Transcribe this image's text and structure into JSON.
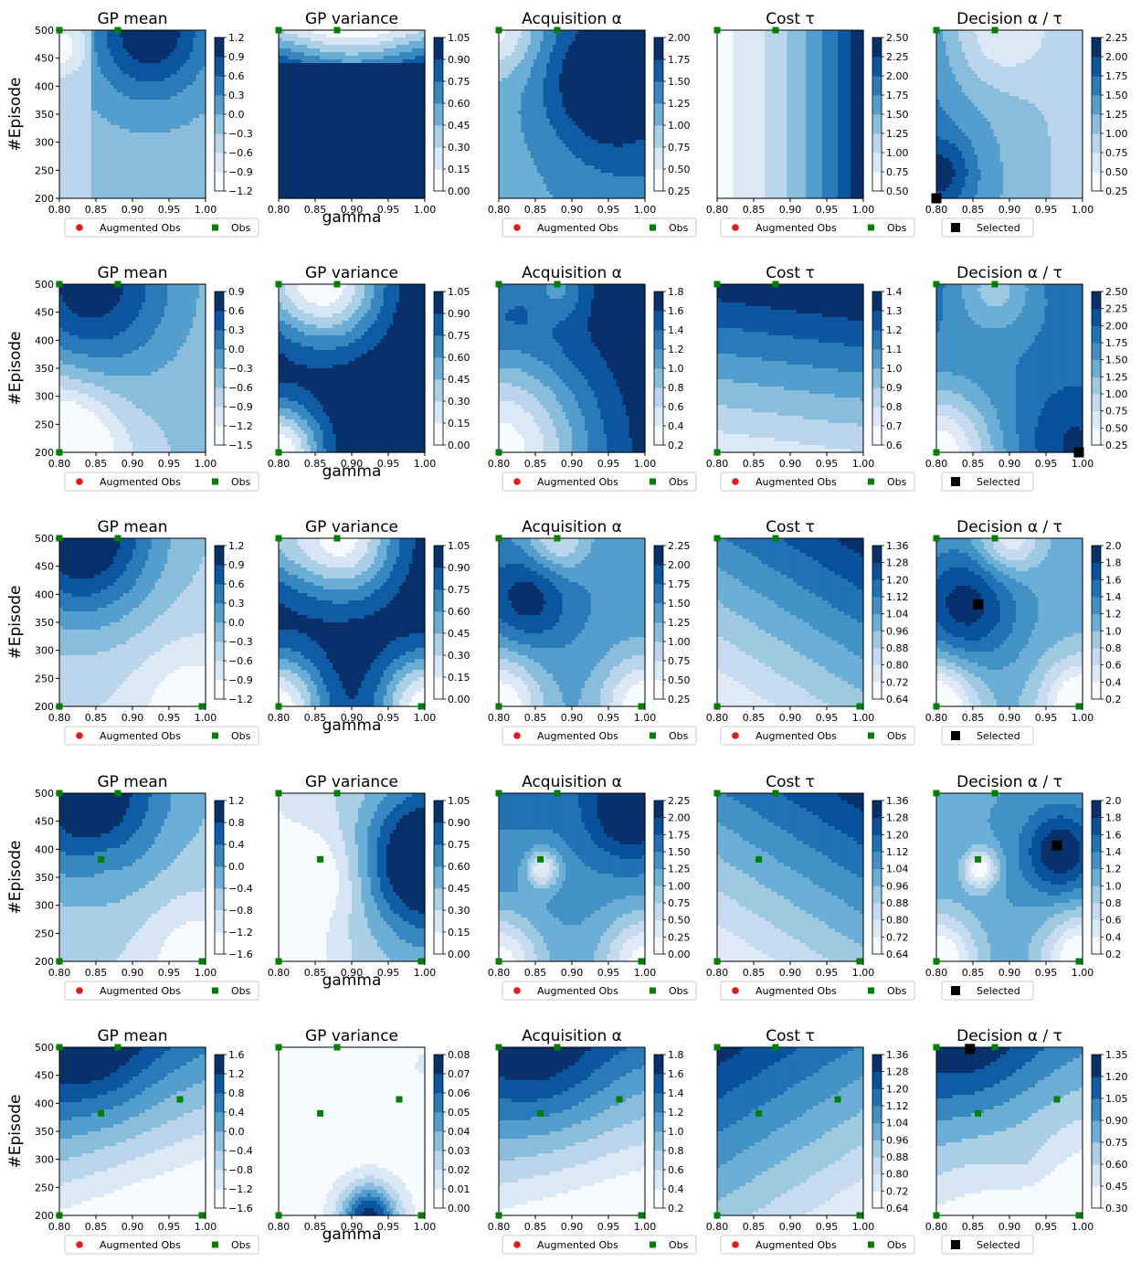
{
  "figure": {
    "row_ylabel": "#Episode",
    "col_xlabel": "gamma",
    "legend_obs_labels": [
      "Augmented Obs",
      "Obs"
    ],
    "legend_selected_label": "Selected",
    "colors": {
      "augmented_obs": "#e41a1c",
      "obs": "#008000",
      "selected": "#000000",
      "colormap": [
        "#f7fbff",
        "#deebf7",
        "#c6dbef",
        "#9ecae1",
        "#6baed6",
        "#4292c6",
        "#2171b5",
        "#08519c",
        "#08306b"
      ]
    }
  },
  "chart_data": [
    {
      "row": 1,
      "type": "heatmap",
      "panels": [
        {
          "title": "GP mean",
          "colorbar_ticks": [
            "1.2",
            "0.9",
            "0.6",
            "0.3",
            "0.0",
            "−0.3",
            "−0.6",
            "−0.9",
            "−1.2"
          ]
        },
        {
          "title": "GP variance",
          "colorbar_ticks": [
            "1.05",
            "0.90",
            "0.75",
            "0.60",
            "0.45",
            "0.30",
            "0.15",
            "0.00"
          ]
        },
        {
          "title": "Acquisition α",
          "colorbar_ticks": [
            "2.00",
            "1.75",
            "1.50",
            "1.25",
            "1.00",
            "0.75",
            "0.50",
            "0.25"
          ]
        },
        {
          "title": "Cost τ",
          "colorbar_ticks": [
            "2.50",
            "2.25",
            "2.00",
            "1.75",
            "1.50",
            "1.25",
            "1.00",
            "0.75",
            "0.50"
          ]
        },
        {
          "title": "Decision α / τ",
          "colorbar_ticks": [
            "2.25",
            "2.00",
            "1.75",
            "1.50",
            "1.25",
            "1.00",
            "0.75",
            "0.50",
            "0.25"
          ]
        }
      ],
      "x_ticks": [
        "0.80",
        "0.85",
        "0.90",
        "0.95",
        "1.00"
      ],
      "y_ticks": [
        "500",
        "450",
        "400",
        "350",
        "300",
        "250",
        "200"
      ],
      "xlim": [
        0.8,
        1.0
      ],
      "ylim": [
        200,
        500
      ],
      "obs": [
        [
          0.8,
          500
        ],
        [
          0.88,
          500
        ]
      ],
      "selected": [
        [
          0.8,
          200
        ]
      ]
    },
    {
      "row": 2,
      "type": "heatmap",
      "panels": [
        {
          "title": "GP mean",
          "colorbar_ticks": [
            "0.9",
            "0.6",
            "0.3",
            "0.0",
            "−0.3",
            "−0.6",
            "−0.9",
            "−1.2",
            "−1.5"
          ]
        },
        {
          "title": "GP variance",
          "colorbar_ticks": [
            "1.05",
            "0.90",
            "0.75",
            "0.60",
            "0.45",
            "0.30",
            "0.15",
            "0.00"
          ]
        },
        {
          "title": "Acquisition α",
          "colorbar_ticks": [
            "1.8",
            "1.6",
            "1.4",
            "1.2",
            "1.0",
            "0.8",
            "0.6",
            "0.4",
            "0.2"
          ]
        },
        {
          "title": "Cost τ",
          "colorbar_ticks": [
            "1.4",
            "1.3",
            "1.2",
            "1.1",
            "1.0",
            "0.9",
            "0.8",
            "0.7",
            "0.6"
          ]
        },
        {
          "title": "Decision α / τ",
          "colorbar_ticks": [
            "2.50",
            "2.25",
            "2.00",
            "1.75",
            "1.50",
            "1.25",
            "1.00",
            "0.75",
            "0.50",
            "0.25"
          ]
        }
      ],
      "x_ticks": [
        "0.80",
        "0.85",
        "0.90",
        "0.95",
        "1.00"
      ],
      "y_ticks": [
        "500",
        "450",
        "400",
        "350",
        "300",
        "250",
        "200"
      ],
      "xlim": [
        0.8,
        1.0
      ],
      "ylim": [
        200,
        500
      ],
      "obs": [
        [
          0.8,
          500
        ],
        [
          0.88,
          500
        ],
        [
          0.8,
          200
        ]
      ],
      "selected": [
        [
          0.995,
          200
        ]
      ]
    },
    {
      "row": 3,
      "type": "heatmap",
      "panels": [
        {
          "title": "GP mean",
          "colorbar_ticks": [
            "1.2",
            "0.9",
            "0.6",
            "0.3",
            "0.0",
            "−0.3",
            "−0.6",
            "−0.9",
            "−1.2"
          ]
        },
        {
          "title": "GP variance",
          "colorbar_ticks": [
            "1.05",
            "0.90",
            "0.75",
            "0.60",
            "0.45",
            "0.30",
            "0.15",
            "0.00"
          ]
        },
        {
          "title": "Acquisition α",
          "colorbar_ticks": [
            "2.25",
            "2.00",
            "1.75",
            "1.50",
            "1.25",
            "1.00",
            "0.75",
            "0.50",
            "0.25"
          ]
        },
        {
          "title": "Cost τ",
          "colorbar_ticks": [
            "1.36",
            "1.28",
            "1.20",
            "1.12",
            "1.04",
            "0.96",
            "0.88",
            "0.80",
            "0.72",
            "0.64"
          ]
        },
        {
          "title": "Decision α / τ",
          "colorbar_ticks": [
            "2.0",
            "1.8",
            "1.6",
            "1.4",
            "1.2",
            "1.0",
            "0.8",
            "0.6",
            "0.4",
            "0.2"
          ]
        }
      ],
      "x_ticks": [
        "0.80",
        "0.85",
        "0.90",
        "0.95",
        "1.00"
      ],
      "y_ticks": [
        "500",
        "450",
        "400",
        "350",
        "300",
        "250",
        "200"
      ],
      "xlim": [
        0.8,
        1.0
      ],
      "ylim": [
        200,
        500
      ],
      "obs": [
        [
          0.8,
          500
        ],
        [
          0.88,
          500
        ],
        [
          0.8,
          200
        ],
        [
          0.995,
          200
        ]
      ],
      "selected": [
        [
          0.857,
          382
        ]
      ]
    },
    {
      "row": 4,
      "type": "heatmap",
      "panels": [
        {
          "title": "GP mean",
          "colorbar_ticks": [
            "1.2",
            "0.8",
            "0.4",
            "0.0",
            "−0.4",
            "−0.8",
            "−1.2",
            "−1.6"
          ]
        },
        {
          "title": "GP variance",
          "colorbar_ticks": [
            "1.05",
            "0.90",
            "0.75",
            "0.60",
            "0.45",
            "0.30",
            "0.15",
            "0.00"
          ]
        },
        {
          "title": "Acquisition α",
          "colorbar_ticks": [
            "2.25",
            "2.00",
            "1.75",
            "1.50",
            "1.25",
            "1.00",
            "0.75",
            "0.50",
            "0.25",
            "0.00"
          ]
        },
        {
          "title": "Cost τ",
          "colorbar_ticks": [
            "1.36",
            "1.28",
            "1.20",
            "1.12",
            "1.04",
            "0.96",
            "0.88",
            "0.80",
            "0.72",
            "0.64"
          ]
        },
        {
          "title": "Decision α / τ",
          "colorbar_ticks": [
            "2.0",
            "1.8",
            "1.6",
            "1.4",
            "1.2",
            "1.0",
            "0.8",
            "0.6",
            "0.4",
            "0.2"
          ]
        }
      ],
      "x_ticks": [
        "0.80",
        "0.85",
        "0.90",
        "0.95",
        "1.00"
      ],
      "y_ticks": [
        "500",
        "450",
        "400",
        "350",
        "300",
        "250",
        "200"
      ],
      "xlim": [
        0.8,
        1.0
      ],
      "ylim": [
        200,
        500
      ],
      "obs": [
        [
          0.8,
          500
        ],
        [
          0.88,
          500
        ],
        [
          0.8,
          200
        ],
        [
          0.995,
          200
        ],
        [
          0.857,
          382
        ]
      ],
      "selected": [
        [
          0.965,
          407
        ]
      ]
    },
    {
      "row": 5,
      "type": "heatmap",
      "panels": [
        {
          "title": "GP mean",
          "colorbar_ticks": [
            "1.6",
            "1.2",
            "0.8",
            "0.4",
            "0.0",
            "−0.4",
            "−0.8",
            "−1.2",
            "−1.6"
          ]
        },
        {
          "title": "GP variance",
          "colorbar_ticks": [
            "0.08",
            "0.07",
            "0.06",
            "0.05",
            "0.04",
            "0.03",
            "0.02",
            "0.01",
            "0.00"
          ]
        },
        {
          "title": "Acquisition α",
          "colorbar_ticks": [
            "1.8",
            "1.6",
            "1.4",
            "1.2",
            "1.0",
            "0.8",
            "0.6",
            "0.4",
            "0.2"
          ]
        },
        {
          "title": "Cost τ",
          "colorbar_ticks": [
            "1.36",
            "1.28",
            "1.20",
            "1.12",
            "1.04",
            "0.96",
            "0.88",
            "0.80",
            "0.72",
            "0.64"
          ]
        },
        {
          "title": "Decision α / τ",
          "colorbar_ticks": [
            "1.35",
            "1.20",
            "1.05",
            "0.90",
            "0.75",
            "0.60",
            "0.45",
            "0.30"
          ]
        }
      ],
      "x_ticks": [
        "0.80",
        "0.85",
        "0.90",
        "0.95",
        "1.00"
      ],
      "y_ticks": [
        "500",
        "450",
        "400",
        "350",
        "300",
        "250",
        "200"
      ],
      "xlim": [
        0.8,
        1.0
      ],
      "ylim": [
        200,
        500
      ],
      "obs": [
        [
          0.8,
          500
        ],
        [
          0.88,
          500
        ],
        [
          0.8,
          200
        ],
        [
          0.995,
          200
        ],
        [
          0.857,
          382
        ],
        [
          0.965,
          407
        ]
      ],
      "selected": [
        [
          0.846,
          497
        ]
      ]
    }
  ]
}
